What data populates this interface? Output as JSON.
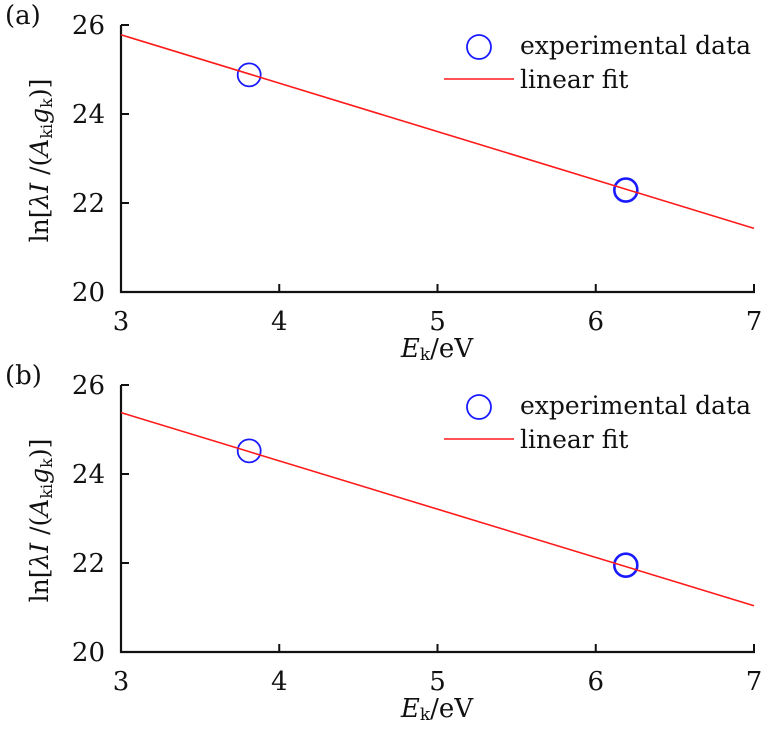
{
  "colors": {
    "data": "#1a1aff",
    "fit": "#ff1a1a",
    "axis": "#111111"
  },
  "chart_data": [
    {
      "type": "scatter",
      "panel_label": "(a)",
      "xlabel": "E_k/eV",
      "xlabel_main": "E",
      "xlabel_sub": "k",
      "xlabel_unit": "/eV",
      "ylabel": "ln[λI/(A_ki g_k)]",
      "xlim": [
        3,
        7
      ],
      "ylim": [
        20,
        26
      ],
      "xticks": [
        "3",
        "4",
        "5",
        "6",
        "7"
      ],
      "yticks": [
        "20",
        "22",
        "24",
        "26"
      ],
      "legend": {
        "placement": "top-right",
        "entries": [
          "experimental data",
          "linear fit"
        ]
      },
      "series": [
        {
          "name": "experimental data",
          "marker": "circle",
          "x": [
            3.81,
            6.19
          ],
          "y": [
            24.88,
            22.29
          ]
        },
        {
          "name": "linear fit",
          "line": true,
          "x": [
            3,
            7
          ],
          "y": [
            25.78,
            21.43
          ]
        }
      ]
    },
    {
      "type": "scatter",
      "panel_label": "(b)",
      "xlabel": "E_k/eV",
      "xlabel_main": "E",
      "xlabel_sub": "k",
      "xlabel_unit": "/eV",
      "ylabel": "ln[λI/(A_ki g_k)]",
      "xlim": [
        3,
        7
      ],
      "ylim": [
        20,
        26
      ],
      "xticks": [
        "3",
        "4",
        "5",
        "6",
        "7"
      ],
      "yticks": [
        "20",
        "22",
        "24",
        "26"
      ],
      "legend": {
        "placement": "top-right",
        "entries": [
          "experimental data",
          "linear fit"
        ]
      },
      "series": [
        {
          "name": "experimental data",
          "marker": "circle",
          "x": [
            3.81,
            6.19
          ],
          "y": [
            24.52,
            21.95
          ]
        },
        {
          "name": "linear fit",
          "line": true,
          "x": [
            3,
            7
          ],
          "y": [
            25.38,
            21.04
          ]
        }
      ]
    }
  ]
}
